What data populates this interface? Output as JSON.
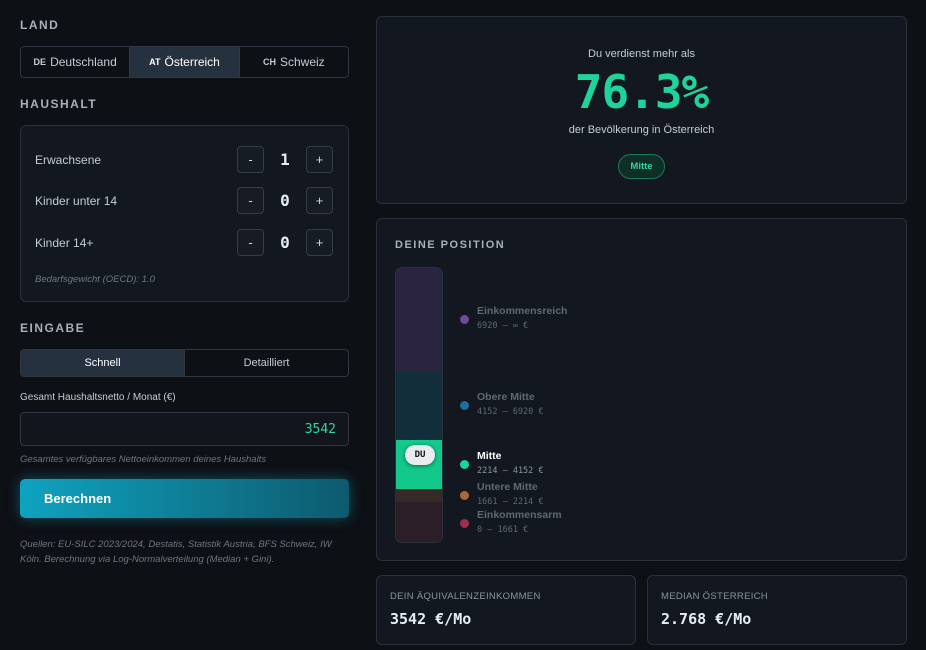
{
  "land": {
    "label": "LAND",
    "options": [
      {
        "code": "DE",
        "name": "Deutschland"
      },
      {
        "code": "AT",
        "name": "Österreich"
      },
      {
        "code": "CH",
        "name": "Schweiz"
      }
    ]
  },
  "haushalt": {
    "label": "HAUSHALT",
    "minus": "-",
    "plus": "+",
    "rows": [
      {
        "label": "Erwachsene",
        "value": 1
      },
      {
        "label": "Kinder unter 14",
        "value": 0
      },
      {
        "label": "Kinder 14+",
        "value": 0
      }
    ],
    "note": "Bedarfsgewicht (OECD): 1.0"
  },
  "eingabe": {
    "label": "EINGABE",
    "tabs": [
      "Schnell",
      "Detailliert"
    ],
    "field_label": "Gesamt Haushaltsnetto / Monat (€)",
    "field_value": "3542",
    "hint": "Gesamtes verfügbares Nettoeinkommen deines Haushalts",
    "button": "Berechnen",
    "sources": "Quellen: EU-SILC 2023/2024, Destatis, Statistik Austria, BFS Schweiz, IW Köln. Berechnung via Log-Normalverteilung (Median + Gini)."
  },
  "result": {
    "pre": "Du verdienst mehr als",
    "percent": "76.3%",
    "post": "der Bevölkerung in Österreich",
    "badge": "Mitte"
  },
  "position": {
    "title": "DEINE POSITION",
    "marker": "DU",
    "levels": [
      {
        "name": "Einkommensreich",
        "range": "6920 – ∞ €"
      },
      {
        "name": "Obere Mitte",
        "range": "4152 – 6920 €"
      },
      {
        "name": "Mitte",
        "range": "2214 – 4152 €"
      },
      {
        "name": "Untere Mitte",
        "range": "1661 – 2214 €"
      },
      {
        "name": "Einkommensarm",
        "range": "0 – 1661 €"
      }
    ]
  },
  "stats": [
    {
      "label": "DEIN ÄQUIVALENZEINKOMMEN",
      "value": "3542 €/Mo"
    },
    {
      "label": "MEDIAN ÖSTERREICH",
      "value": "2.768 €/Mo"
    }
  ]
}
